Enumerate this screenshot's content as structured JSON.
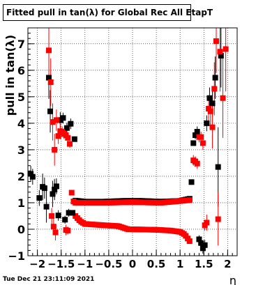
{
  "chart_data": {
    "type": "scatter",
    "title": "Fitted pull in tan(λ) for Global Rec All EtapT",
    "xlabel": "η",
    "ylabel": "pull in tan(λ)",
    "xlim": [
      -2.2,
      2.2
    ],
    "ylim": [
      -1,
      7.6
    ],
    "xticks": [
      -2,
      -1.5,
      -1,
      -0.5,
      0,
      0.5,
      1,
      1.5,
      2
    ],
    "xtick_labels": [
      "−2",
      "−1.5",
      "−1",
      "−0.5",
      "0",
      "0.5",
      "1",
      "1.5",
      "2"
    ],
    "yticks": [
      -1,
      0,
      1,
      2,
      3,
      4,
      5,
      6,
      7
    ],
    "ytick_labels": [
      "−1",
      "0",
      "1",
      "2",
      "3",
      "4",
      "5",
      "6",
      "7"
    ],
    "grid": true,
    "series": [
      {
        "color": "#000000",
        "points": [
          {
            "x": -2.14,
            "y": 2.09,
            "e": 0.3
          },
          {
            "x": -2.1,
            "y": 1.98,
            "e": 0.3
          },
          {
            "x": -1.96,
            "y": 1.18,
            "e": 0.3
          },
          {
            "x": -1.89,
            "y": 1.6,
            "e": 0.5
          },
          {
            "x": -1.85,
            "y": 1.55,
            "e": 0.4
          },
          {
            "x": -1.81,
            "y": 0.85,
            "e": 0.6
          },
          {
            "x": -1.76,
            "y": 5.72,
            "e": 0.8
          },
          {
            "x": -1.73,
            "y": 4.45,
            "e": 0.8
          },
          {
            "x": -1.68,
            "y": 1.33,
            "e": 0.5
          },
          {
            "x": -1.64,
            "y": 1.5,
            "e": 0.4
          },
          {
            "x": -1.6,
            "y": 1.62,
            "e": 0.3
          },
          {
            "x": -1.56,
            "y": 0.52,
            "e": 0.2
          },
          {
            "x": -1.52,
            "y": 4.12,
            "e": 0.3
          },
          {
            "x": -1.46,
            "y": 4.2,
            "e": 0.2
          },
          {
            "x": -1.42,
            "y": 0.36,
            "e": 0.15
          },
          {
            "x": -1.38,
            "y": 3.82,
            "e": 0.2
          },
          {
            "x": -1.34,
            "y": 0.62,
            "e": 0.15
          },
          {
            "x": -1.3,
            "y": 3.98,
            "e": 0.2
          },
          {
            "x": -1.26,
            "y": 0.62,
            "e": 0.1
          },
          {
            "x": -1.22,
            "y": 3.4,
            "e": 0.1
          },
          {
            "x": 1.24,
            "y": 1.78,
            "e": 0.1
          },
          {
            "x": 1.28,
            "y": 3.25,
            "e": 0.1
          },
          {
            "x": 1.32,
            "y": 3.55,
            "e": 0.15
          },
          {
            "x": 1.36,
            "y": 3.68,
            "e": 0.2
          },
          {
            "x": 1.4,
            "y": -0.38,
            "e": 0.15
          },
          {
            "x": 1.44,
            "y": -0.52,
            "e": 0.2
          },
          {
            "x": 1.48,
            "y": -0.72,
            "e": 0.2
          },
          {
            "x": 1.52,
            "y": -0.6,
            "e": 0.2
          },
          {
            "x": 1.56,
            "y": 4.0,
            "e": 0.3
          },
          {
            "x": 1.62,
            "y": 4.95,
            "e": 0.4
          },
          {
            "x": 1.68,
            "y": 4.75,
            "e": 0.5
          },
          {
            "x": 1.74,
            "y": 5.72,
            "e": 0.8
          },
          {
            "x": 1.8,
            "y": 2.35,
            "e": 1.5
          },
          {
            "x": 1.86,
            "y": 6.55,
            "e": 1.2
          }
        ]
      },
      {
        "color": "#ff0000",
        "points": [
          {
            "x": -1.76,
            "y": 6.75,
            "e": 1.0
          },
          {
            "x": -1.72,
            "y": 5.55,
            "e": 0.9
          },
          {
            "x": -1.68,
            "y": 4.05,
            "e": 0.7
          },
          {
            "x": -1.64,
            "y": 3.0,
            "e": 0.6
          },
          {
            "x": -1.6,
            "y": 4.12,
            "e": 0.4
          },
          {
            "x": -1.56,
            "y": 3.52,
            "e": 0.3
          },
          {
            "x": -1.52,
            "y": 3.7,
            "e": 0.3
          },
          {
            "x": -1.48,
            "y": 3.68,
            "e": 0.2
          },
          {
            "x": -1.44,
            "y": 3.6,
            "e": 0.2
          },
          {
            "x": -1.4,
            "y": 3.55,
            "e": 0.2
          },
          {
            "x": -1.36,
            "y": 3.45,
            "e": 0.2
          },
          {
            "x": -1.32,
            "y": 3.22,
            "e": 0.15
          },
          {
            "x": -1.7,
            "y": 0.5,
            "e": 0.3
          },
          {
            "x": -1.66,
            "y": 0.1,
            "e": 0.3
          },
          {
            "x": -1.62,
            "y": -0.12,
            "e": 0.3
          },
          {
            "x": -1.4,
            "y": -0.03,
            "e": 0.2
          },
          {
            "x": -1.36,
            "y": -0.05,
            "e": 0.15
          },
          {
            "x": 1.28,
            "y": 2.6,
            "e": 0.2
          },
          {
            "x": 1.32,
            "y": 2.55,
            "e": 0.2
          },
          {
            "x": 1.36,
            "y": 2.48,
            "e": 0.2
          },
          {
            "x": 1.4,
            "y": 3.48,
            "e": 0.2
          },
          {
            "x": 1.44,
            "y": 3.48,
            "e": 0.2
          },
          {
            "x": 1.48,
            "y": 3.25,
            "e": 0.25
          },
          {
            "x": 1.52,
            "y": 0.15,
            "e": 0.2
          },
          {
            "x": 1.56,
            "y": 0.25,
            "e": 0.3
          },
          {
            "x": 1.6,
            "y": 4.55,
            "e": 0.5
          },
          {
            "x": 1.64,
            "y": 4.45,
            "e": 0.6
          },
          {
            "x": 1.68,
            "y": 3.85,
            "e": 0.8
          },
          {
            "x": 1.72,
            "y": 5.3,
            "e": 1.0
          },
          {
            "x": 1.76,
            "y": 7.1,
            "e": 1.2
          },
          {
            "x": 1.8,
            "y": 0.38,
            "e": 1.0
          },
          {
            "x": 1.84,
            "y": 6.7,
            "e": 1.5
          },
          {
            "x": 1.9,
            "y": 4.95,
            "e": 1.5
          },
          {
            "x": 1.96,
            "y": 6.8,
            "e": 1.6
          }
        ]
      }
    ],
    "bands": [
      {
        "color": "#000000",
        "x_from": -1.2,
        "x_to": 1.2,
        "step": 0.04,
        "knots": [
          [
            -1.2,
            1.08
          ],
          [
            -1.0,
            1.04
          ],
          [
            -0.6,
            1.04
          ],
          [
            -0.2,
            1.07
          ],
          [
            0.2,
            1.07
          ],
          [
            0.6,
            1.04
          ],
          [
            1.0,
            1.07
          ],
          [
            1.2,
            1.15
          ]
        ]
      },
      {
        "color": "#ff0000",
        "x_from": -1.28,
        "x_to": 1.2,
        "step": 0.04,
        "knots": [
          [
            -1.28,
            1.38
          ],
          [
            -1.24,
            1.05
          ],
          [
            -1.2,
            0.5
          ],
          [
            -1.1,
            0.3
          ],
          [
            -1.0,
            0.2
          ],
          [
            -0.6,
            0.15
          ],
          [
            -0.3,
            0.12
          ],
          [
            -0.1,
            0.0
          ],
          [
            0.5,
            -0.02
          ],
          [
            0.8,
            -0.05
          ],
          [
            1.0,
            -0.1
          ],
          [
            1.1,
            -0.2
          ],
          [
            1.2,
            -0.45
          ]
        ]
      },
      {
        "color": "#ff0000",
        "x_from": -1.2,
        "x_to": 1.2,
        "step": 0.04,
        "knots": [
          [
            -1.2,
            1.0
          ],
          [
            -0.6,
            1.0
          ],
          [
            0.0,
            1.02
          ],
          [
            0.6,
            1.0
          ],
          [
            1.2,
            1.1
          ]
        ]
      }
    ]
  },
  "footer": {
    "timestamp": "Tue Dec 21 23:11:09 2021"
  }
}
